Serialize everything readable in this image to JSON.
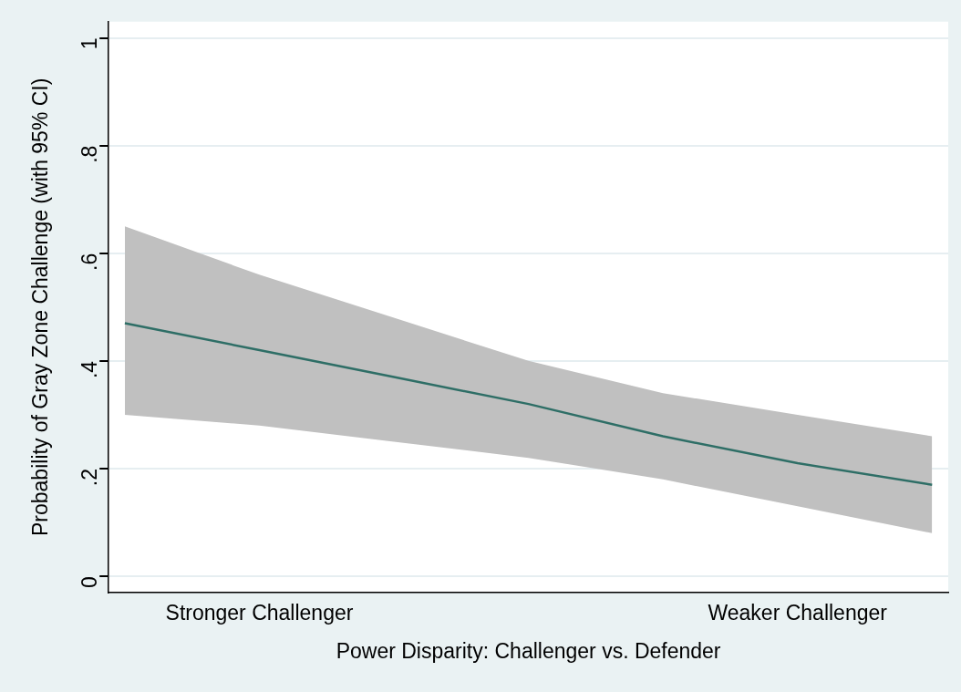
{
  "chart_data": {
    "type": "line",
    "xlabel": "Power Disparity: Challenger vs. Defender",
    "ylabel": "Probability of Gray Zone Challenge (with 95% CI)",
    "categories": [
      null,
      "Stronger Challenger",
      null,
      null,
      null,
      "Weaker Challenger",
      null
    ],
    "series": [
      {
        "color": "#2e6e66",
        "values": [
          0.47,
          0.42,
          0.37,
          0.32,
          0.26,
          0.21,
          0.17
        ],
        "lower": [
          0.3,
          0.28,
          0.25,
          0.22,
          0.18,
          0.13,
          0.08
        ],
        "upper": [
          0.65,
          0.56,
          0.48,
          0.4,
          0.34,
          0.3,
          0.26
        ]
      }
    ],
    "ylim": [
      -0.03,
      1.03
    ],
    "yticks": [
      {
        "value": 0,
        "label": "0"
      },
      {
        "value": 0.2,
        "label": ".2"
      },
      {
        "value": 0.4,
        "label": ".4"
      },
      {
        "value": 0.6,
        "label": ".6"
      },
      {
        "value": 0.8,
        "label": ".8"
      },
      {
        "value": 1,
        "label": "1"
      }
    ],
    "grid": "y",
    "legend": false,
    "marker": "none",
    "line_style": "solid"
  }
}
